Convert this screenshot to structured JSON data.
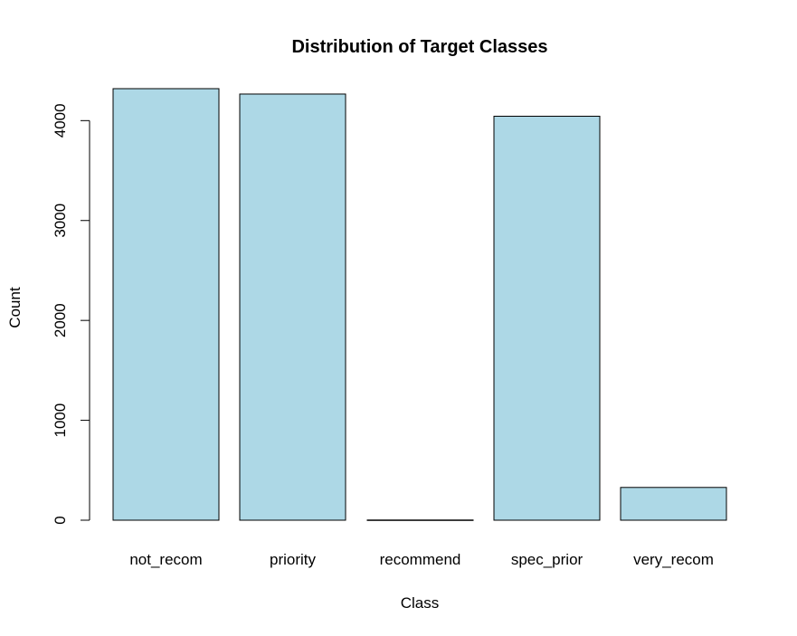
{
  "chart_data": {
    "type": "bar",
    "title": "Distribution of Target Classes",
    "xlabel": "Class",
    "ylabel": "Count",
    "categories": [
      "not_recom",
      "priority",
      "recommend",
      "spec_prior",
      "very_recom"
    ],
    "values": [
      4320,
      4266,
      2,
      4044,
      328
    ],
    "ylim": [
      0,
      4320
    ],
    "yticks": [
      0,
      1000,
      2000,
      3000,
      4000
    ],
    "ytick_labels": [
      "0",
      "1000",
      "2000",
      "3000",
      "4000"
    ],
    "bar_color": "#ADD8E6",
    "bar_border_color": "#000000",
    "grid": false,
    "legend": "none"
  }
}
